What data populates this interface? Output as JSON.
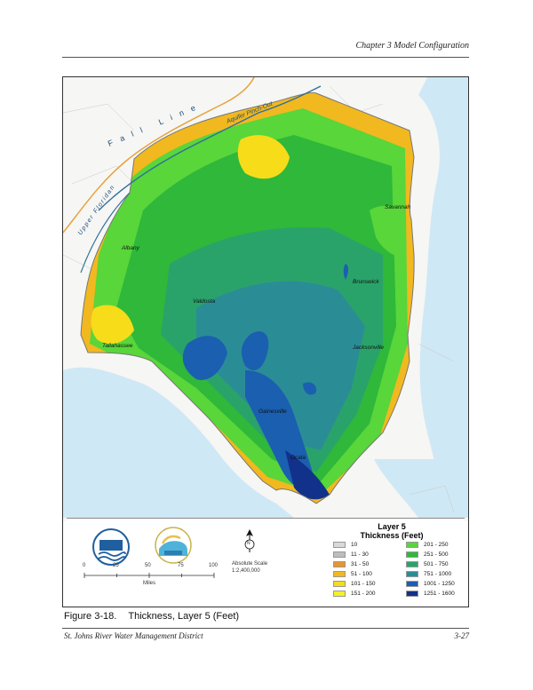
{
  "header": {
    "chapter": "Chapter 3 Model Configuration"
  },
  "map": {
    "labels": {
      "fall_line": "Fall Line",
      "pinch_out": "Aquifer Pinch-Out",
      "upper_floridan": "Upper Floridan",
      "savannah": "Savannah",
      "albany": "Albany",
      "brunswick": "Brunswick",
      "valdosta": "Valdosta",
      "tallahassee": "Tallahassee",
      "jacksonville": "Jacksonville",
      "gainesville": "Gainesville",
      "ocala": "Ocala"
    },
    "colors": {
      "ocean": "#cfe8f5",
      "land": "#f4f4f4",
      "border": "#777777"
    }
  },
  "legend": {
    "title_line1": "Layer 5",
    "title_line2": "Thickness (Feet)",
    "items": [
      {
        "label": "10",
        "color": "#d9d9d9"
      },
      {
        "label": "11 - 30",
        "color": "#bdbdbd"
      },
      {
        "label": "31 - 50",
        "color": "#e8952e"
      },
      {
        "label": "51 - 100",
        "color": "#f2b81f"
      },
      {
        "label": "101 - 150",
        "color": "#f7dc1a"
      },
      {
        "label": "151 - 200",
        "color": "#f5f02c"
      },
      {
        "label": "201 - 250",
        "color": "#58d63a"
      },
      {
        "label": "251 - 500",
        "color": "#2fb83a"
      },
      {
        "label": "501 - 750",
        "color": "#2aa36a"
      },
      {
        "label": "751 - 1000",
        "color": "#2a8d96"
      },
      {
        "label": "1001 - 1250",
        "color": "#1b5fb0"
      },
      {
        "label": "1251 - 1600",
        "color": "#12318a"
      }
    ]
  },
  "scale": {
    "ticks": [
      "0",
      "25",
      "50",
      "75",
      "100"
    ],
    "unit": "Miles",
    "absolute_label": "Absolute Scale",
    "ratio": "1:2,400,000",
    "north": "N"
  },
  "caption": {
    "figure": "Figure 3-18.",
    "title": "Thickness, Layer 5 (Feet)"
  },
  "footer": {
    "left": "St. Johns River Water Management District",
    "page": "3-27"
  }
}
